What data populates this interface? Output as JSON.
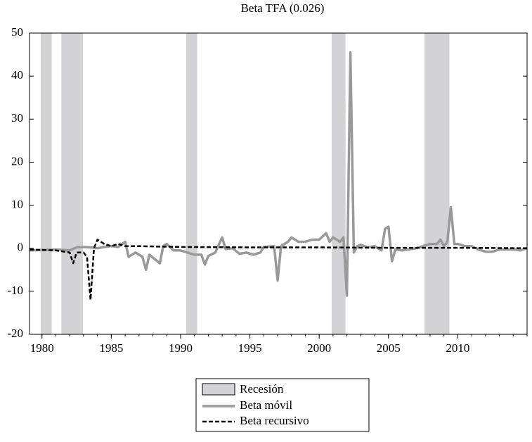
{
  "chart_data": {
    "type": "line",
    "title": "Beta TFA (0.026)",
    "xlim": [
      1979.1,
      2015
    ],
    "xticks": [
      1980,
      1985,
      1990,
      1995,
      2000,
      2005,
      2010
    ],
    "ylim": [
      -20,
      50
    ],
    "yticks": [
      -20,
      -10,
      0,
      10,
      20,
      30,
      40,
      50
    ],
    "bands": {
      "name": "Recesión",
      "color": "#d3d3d5",
      "ranges": [
        [
          1979.9,
          1980.7
        ],
        [
          1981.4,
          1982.95
        ],
        [
          1990.4,
          1991.2
        ],
        [
          2000.9,
          2001.9
        ],
        [
          2007.6,
          2009.4
        ]
      ]
    },
    "series": [
      {
        "name": "Beta móvil",
        "color": "#999999",
        "line_style": "solid",
        "x": [
          1979.1,
          1981,
          1982,
          1982.5,
          1983,
          1983.5,
          1984,
          1984.5,
          1985,
          1985.5,
          1986,
          1986.25,
          1986.75,
          1987.25,
          1987.5,
          1987.75,
          1988.5,
          1988.75,
          1989,
          1989.5,
          1990,
          1990.5,
          1991,
          1991.5,
          1991.75,
          1992,
          1992.5,
          1993,
          1993.25,
          1993.75,
          1994.25,
          1994.75,
          1995.25,
          1995.75,
          1996,
          1996.75,
          1997,
          1997.25,
          1997.75,
          1998,
          1998.5,
          1999,
          1999.5,
          2000,
          2000.5,
          2000.75,
          2001,
          2001.5,
          2001.75,
          2002,
          2002.25,
          2002.5,
          2002.75,
          2003,
          2003.5,
          2004,
          2004.5,
          2004.75,
          2005,
          2005.25,
          2005.5,
          2006,
          2007,
          2007.5,
          2008,
          2008.5,
          2008.75,
          2009,
          2009.25,
          2009.5,
          2009.75,
          2010,
          2010.5,
          2011,
          2011.5,
          2012,
          2012.5,
          2013,
          2014,
          2014.5,
          2015
        ],
        "values": [
          -0.5,
          -0.3,
          -0.5,
          0.2,
          0.3,
          0.2,
          0,
          0.3,
          0.5,
          0.3,
          1.5,
          -2,
          -1,
          -2,
          -5,
          -1.5,
          -3.5,
          0.5,
          1,
          -0.5,
          -0.5,
          -1,
          -1.5,
          -1.5,
          -3.8,
          -1.8,
          -1,
          2.5,
          -0.2,
          0,
          -1.3,
          -1,
          -1.5,
          -1,
          0.3,
          0.5,
          -7.5,
          0.5,
          1.5,
          2.5,
          1.5,
          1.5,
          2,
          2,
          3.5,
          1.5,
          2.5,
          1.5,
          2.5,
          -11,
          45.5,
          -1,
          0.5,
          0.8,
          0.2,
          0.5,
          -0.5,
          4.5,
          5,
          -3,
          -0.3,
          -0.5,
          0,
          0.5,
          1,
          1,
          2,
          0.5,
          1.5,
          9.5,
          1,
          1,
          0.5,
          0.5,
          -0.3,
          -0.8,
          -0.8,
          -0.3,
          -0.3,
          -0.5,
          0
        ]
      },
      {
        "name": "Beta recursivo",
        "color": "#000000",
        "line_style": "dashed",
        "x": [
          1979.1,
          1981,
          1982,
          1982.25,
          1982.5,
          1983,
          1983.25,
          1983.5,
          1983.75,
          1984,
          1984.5,
          1985,
          1985.5,
          1986,
          1987,
          1990,
          1995,
          2000,
          2005,
          2010,
          2015
        ],
        "values": [
          -0.3,
          -0.5,
          -1,
          -3.5,
          -1,
          -1,
          -2,
          -12,
          0,
          2,
          1,
          0.5,
          1,
          0.5,
          0.5,
          0.3,
          0.2,
          0.2,
          0.1,
          0.1,
          0
        ]
      }
    ]
  }
}
